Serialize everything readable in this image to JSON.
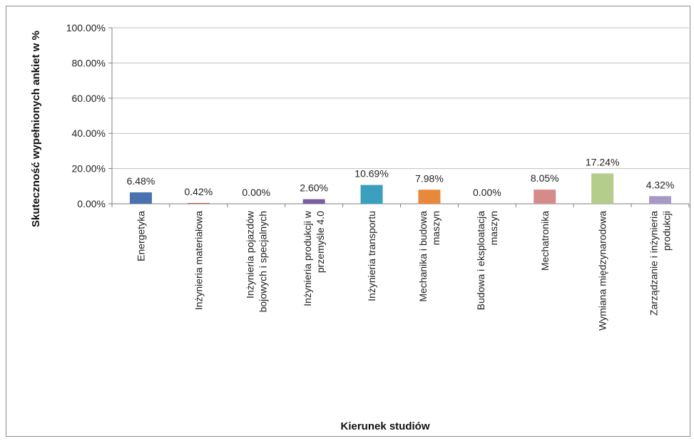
{
  "chart_data": {
    "type": "bar",
    "title": "",
    "xlabel": "Kierunek studiów",
    "ylabel": "Skuteczność wypełnionych ankiet w %",
    "ylim": [
      0,
      100
    ],
    "yticks": [
      "0.00%",
      "20.00%",
      "40.00%",
      "60.00%",
      "80.00%",
      "100.00%"
    ],
    "grid": true,
    "legend": "none",
    "categories": [
      [
        "Energetyka"
      ],
      [
        "Inżynieria materiałowa"
      ],
      [
        "Inżynieria pojazdów",
        "bojowych i specjalnych"
      ],
      [
        "Inżynieria produkcji  w",
        "przemyśle 4.0"
      ],
      [
        "Inżynieria transportu"
      ],
      [
        "Mechanika i budowa",
        "maszyn"
      ],
      [
        "Budowa i eksploatacja",
        "maszyn"
      ],
      [
        "Mechatronika"
      ],
      [
        "Wymiana międzynarodowa"
      ],
      [
        "Zarządzanie i inżynieria",
        "produkcji"
      ]
    ],
    "values": [
      6.48,
      0.42,
      0.0,
      2.6,
      10.69,
      7.98,
      0.0,
      8.05,
      17.24,
      4.32
    ],
    "data_labels": [
      "6.48%",
      "0.42%",
      "0.00%",
      "2.60%",
      "10.69%",
      "7.98%",
      "0.00%",
      "8.05%",
      "17.24%",
      "4.32%"
    ],
    "colors": [
      "#4a72b0",
      "#c0504d",
      "#9bbb59",
      "#7a5fa0",
      "#3b9fbe",
      "#e8883a",
      "#4f81bd",
      "#d48b8a",
      "#b5cd8a",
      "#a798c4"
    ],
    "gridline_color": "#bfbfbf",
    "axis_color": "#7f7f7f"
  }
}
